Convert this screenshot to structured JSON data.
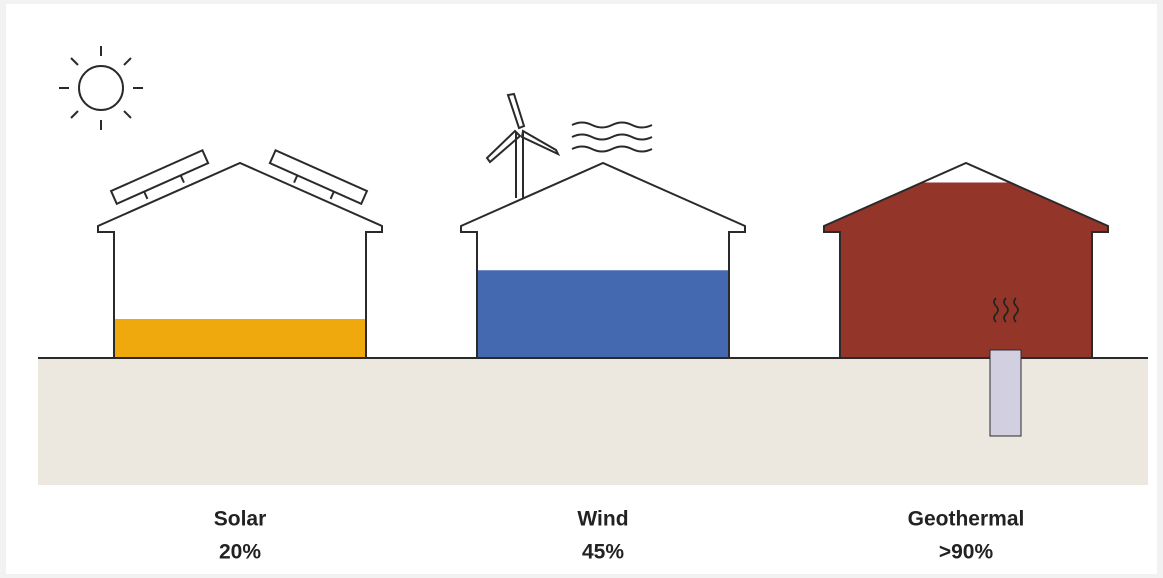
{
  "chart_data": {
    "type": "pictorial",
    "categories": [
      "Solar",
      "Wind",
      "Geothermal"
    ],
    "values": [
      20,
      45,
      90
    ],
    "value_labels": [
      "20%",
      "45%",
      ">90%"
    ],
    "colors": [
      "#efa90c",
      "#4569b1",
      "#943529"
    ]
  }
}
